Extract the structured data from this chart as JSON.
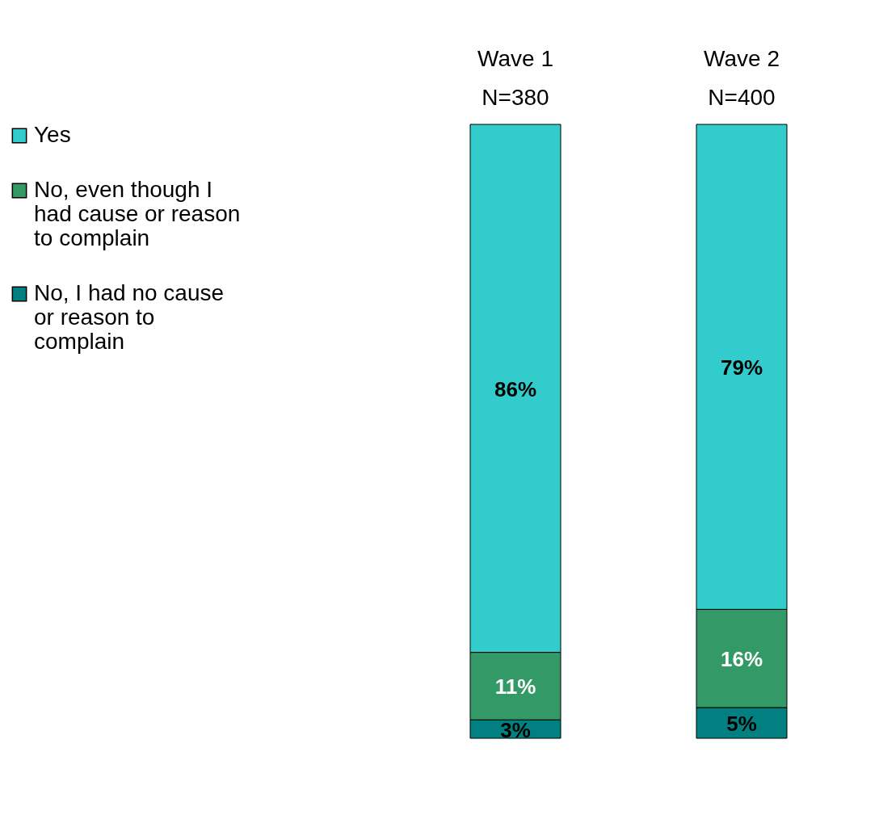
{
  "chart_data": {
    "type": "bar",
    "stacked": true,
    "categories": [
      "Wave 1\nN=380",
      "Wave 2\nN=400"
    ],
    "series": [
      {
        "name": "No, I had no cause or reason to complain",
        "color": "#008080",
        "values": [
          3,
          5
        ],
        "value_labels": [
          "3%",
          "5%"
        ]
      },
      {
        "name": "No, even though I had cause or reason to complain",
        "color": "#339966",
        "values": [
          11,
          16
        ],
        "value_labels": [
          "11%",
          "16%"
        ]
      },
      {
        "name": "Yes",
        "color": "#33cccc",
        "values": [
          86,
          79
        ],
        "value_labels": [
          "86%",
          "79%"
        ]
      }
    ],
    "legend": "left"
  }
}
